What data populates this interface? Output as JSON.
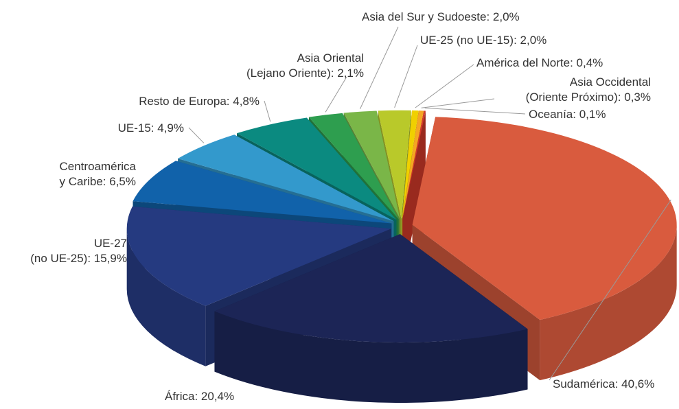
{
  "chart_data": {
    "type": "pie",
    "categories": [
      "Sudamérica",
      "África",
      [
        "UE-27",
        "(no UE-25)"
      ],
      [
        "Centroamérica",
        "y Caribe"
      ],
      "UE-15",
      "Resto de Europa",
      [
        "Asia Oriental",
        "(Lejano Oriente)"
      ],
      "Asia del Sur y Sudoeste",
      "UE-25 (no UE-15)",
      "América del Norte",
      [
        "Asia Occidental",
        "(Oriente Próximo)"
      ],
      "Oceanía"
    ],
    "values": [
      40.6,
      20.4,
      15.9,
      6.5,
      4.9,
      4.8,
      2.1,
      2.0,
      2.0,
      0.4,
      0.3,
      0.1
    ],
    "value_labels": [
      "40,6%",
      "20,4%",
      "15,9%",
      "6,5%",
      "4,9%",
      "4,8%",
      "2,1%",
      "2,0%",
      "2,0%",
      "0,4%",
      "0,3%",
      "0,1%"
    ],
    "label_separator": ": ",
    "colors": [
      "#d95b3e",
      "#1c2556",
      "#253a80",
      "#1162aa",
      "#3399cc",
      "#0b8a80",
      "#2e9e4f",
      "#7ab648",
      "#b9c92a",
      "#f0d000",
      "#f5a623",
      "#d43a2a"
    ]
  }
}
